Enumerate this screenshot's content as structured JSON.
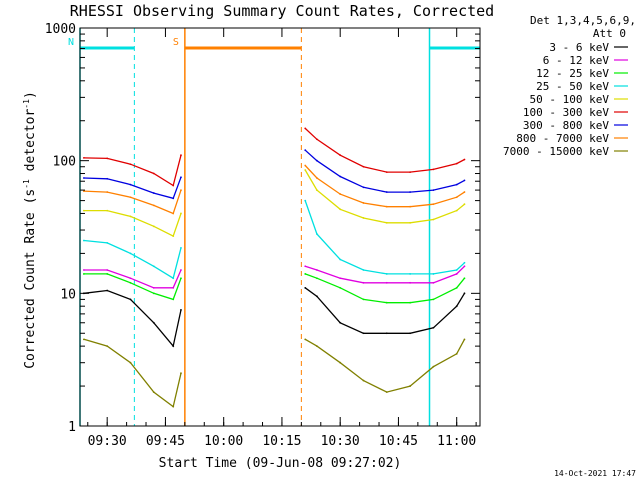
{
  "chart_data": {
    "type": "line",
    "title": "RHESSI Observing Summary Count Rates, Corrected",
    "xlabel": "Start Time (09-Jun-08 09:27:02)",
    "ylabel_main": "Corrected Count Rate (s",
    "ylabel_sup1": "-1",
    "ylabel_mid": " detector",
    "ylabel_sup2": "-1",
    "ylabel_end": ")",
    "y_scale": "log",
    "ylim": [
      1,
      1000
    ],
    "xlim": [
      "09:23",
      "11:06"
    ],
    "x_ticks": [
      "09:30",
      "09:45",
      "10:00",
      "10:15",
      "10:30",
      "10:45",
      "11:00"
    ],
    "y_ticks": [
      "1",
      "10",
      "100",
      "1000"
    ],
    "legend_header": [
      "Det 1,3,4,5,6,9,",
      "Att 0"
    ],
    "legend_position": "right",
    "gaps": [
      [
        "09:50",
        "10:20"
      ]
    ],
    "series": [
      {
        "name": "3 - 6 keV",
        "color": "#000000",
        "x": [
          "09:24",
          "09:30",
          "09:36",
          "09:42",
          "09:47",
          "09:49",
          "10:21",
          "10:24",
          "10:30",
          "10:36",
          "10:42",
          "10:48",
          "10:54",
          "11:00",
          "11:02"
        ],
        "values": [
          10,
          10.5,
          9,
          6,
          4,
          7.5,
          11,
          9.5,
          6,
          5,
          5,
          5,
          5.5,
          8,
          10
        ]
      },
      {
        "name": "6 - 12 keV",
        "color": "#e000e0",
        "x": [
          "09:24",
          "09:30",
          "09:36",
          "09:42",
          "09:47",
          "09:49",
          "10:21",
          "10:24",
          "10:30",
          "10:36",
          "10:42",
          "10:48",
          "10:54",
          "11:00",
          "11:02"
        ],
        "values": [
          15,
          15,
          13,
          11,
          11,
          15,
          16,
          15,
          13,
          12,
          12,
          12,
          12,
          14,
          16
        ]
      },
      {
        "name": "12 - 25 keV",
        "color": "#00ee00",
        "x": [
          "09:24",
          "09:30",
          "09:36",
          "09:42",
          "09:47",
          "09:49",
          "10:21",
          "10:24",
          "10:30",
          "10:36",
          "10:42",
          "10:48",
          "10:54",
          "11:00",
          "11:02"
        ],
        "values": [
          14,
          14,
          12,
          10,
          9,
          13,
          14,
          13,
          11,
          9,
          8.5,
          8.5,
          9,
          11,
          13
        ]
      },
      {
        "name": "25 - 50 keV",
        "color": "#00e0e0",
        "x": [
          "09:24",
          "09:30",
          "09:36",
          "09:42",
          "09:47",
          "09:49",
          "10:21",
          "10:24",
          "10:30",
          "10:36",
          "10:42",
          "10:48",
          "10:54",
          "11:00",
          "11:02"
        ],
        "values": [
          25,
          24,
          20,
          16,
          13,
          22,
          50,
          28,
          18,
          15,
          14,
          14,
          14,
          15,
          17
        ]
      },
      {
        "name": "50 - 100 keV",
        "color": "#dddd00",
        "x": [
          "09:24",
          "09:30",
          "09:36",
          "09:42",
          "09:47",
          "09:49",
          "10:21",
          "10:24",
          "10:30",
          "10:36",
          "10:42",
          "10:48",
          "10:54",
          "11:00",
          "11:02"
        ],
        "values": [
          42,
          42,
          38,
          32,
          27,
          40,
          85,
          60,
          43,
          37,
          34,
          34,
          36,
          42,
          47
        ]
      },
      {
        "name": "100 - 300 keV",
        "color": "#e00000",
        "x": [
          "09:24",
          "09:30",
          "09:36",
          "09:42",
          "09:47",
          "09:49",
          "10:21",
          "10:24",
          "10:30",
          "10:36",
          "10:42",
          "10:48",
          "10:54",
          "11:00",
          "11:02"
        ],
        "values": [
          105,
          104,
          94,
          80,
          65,
          110,
          175,
          145,
          110,
          90,
          82,
          82,
          86,
          95,
          102
        ]
      },
      {
        "name": "300 - 800 keV",
        "color": "#0000e0",
        "x": [
          "09:24",
          "09:30",
          "09:36",
          "09:42",
          "09:47",
          "09:49",
          "10:21",
          "10:24",
          "10:30",
          "10:36",
          "10:42",
          "10:48",
          "10:54",
          "11:00",
          "11:02"
        ],
        "values": [
          74,
          73,
          66,
          57,
          52,
          75,
          120,
          100,
          76,
          63,
          58,
          58,
          60,
          66,
          71
        ]
      },
      {
        "name": "800 - 7000 keV",
        "color": "#ff8000",
        "x": [
          "09:24",
          "09:30",
          "09:36",
          "09:42",
          "09:47",
          "09:49",
          "10:21",
          "10:24",
          "10:30",
          "10:36",
          "10:42",
          "10:48",
          "10:54",
          "11:00",
          "11:02"
        ],
        "values": [
          59,
          58,
          53,
          46,
          40,
          60,
          92,
          74,
          56,
          48,
          45,
          45,
          47,
          53,
          58
        ]
      },
      {
        "name": "7000 - 15000 keV",
        "color": "#808000",
        "x": [
          "09:24",
          "09:30",
          "09:36",
          "09:42",
          "09:47",
          "09:49",
          "10:21",
          "10:24",
          "10:30",
          "10:36",
          "10:42",
          "10:48",
          "10:54",
          "11:00",
          "11:02"
        ],
        "values": [
          4.5,
          4,
          3,
          1.8,
          1.4,
          2.5,
          4.5,
          4,
          3,
          2.2,
          1.8,
          2,
          2.8,
          3.5,
          4.5
        ]
      }
    ],
    "annotations": [
      {
        "label": "N",
        "color": "#00e0e0",
        "x_start": "09:23",
        "x_end": "09:37",
        "type": "night"
      },
      {
        "label": "S",
        "color": "#ff8000",
        "x_start": "09:50",
        "x_end": "10:20",
        "type": "saa"
      },
      {
        "label": "",
        "color": "#00e0e0",
        "x_start": "10:53",
        "x_end": "11:06",
        "type": "night"
      }
    ],
    "footer": "14-Oct-2021 17:47"
  }
}
